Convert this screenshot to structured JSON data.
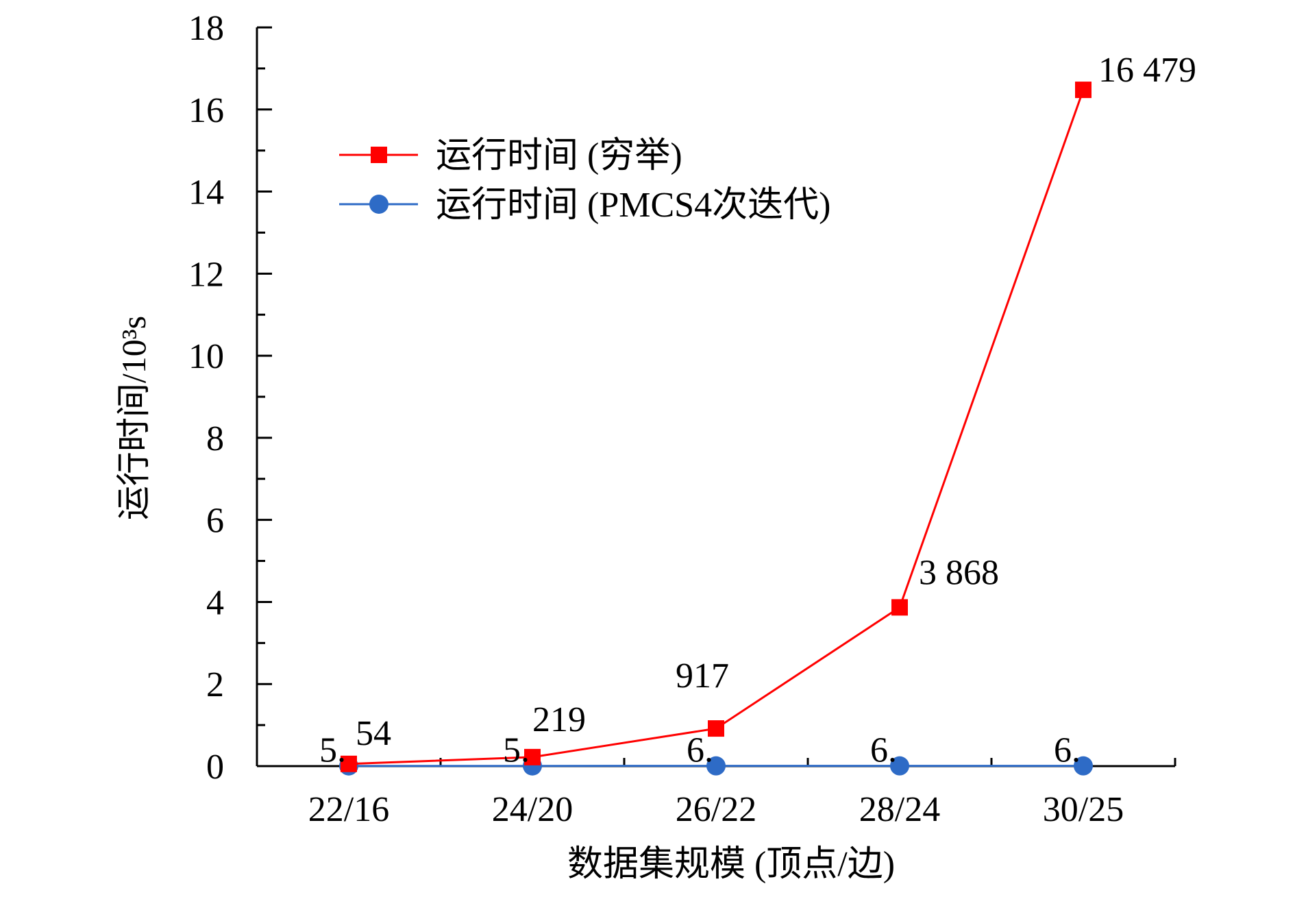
{
  "chart_data": {
    "type": "line",
    "title": "",
    "xlabel": "数据集规模 (顶点/边)",
    "ylabel": "运行时间/10³s",
    "categories": [
      "22/16",
      "24/20",
      "26/22",
      "28/24",
      "30/25"
    ],
    "ylim": [
      0,
      18
    ],
    "yticks": [
      0,
      2,
      4,
      6,
      8,
      10,
      12,
      14,
      16,
      18
    ],
    "grid": false,
    "legend_position": "top-left",
    "series": [
      {
        "name": "运行时间 (穷举)",
        "color": "#ff0000",
        "marker": "square",
        "values": [
          0.054,
          0.219,
          0.917,
          3.868,
          16.479
        ],
        "labels": [
          "54",
          "219",
          "917",
          "3 868",
          "16 479"
        ]
      },
      {
        "name": "运行时间 (PMCS4次迭代)",
        "color": "#2e6bc6",
        "marker": "circle",
        "values": [
          0.005,
          0.005,
          0.006,
          0.006,
          0.006
        ],
        "labels": [
          "5.",
          "5.",
          "6.",
          "6.",
          "6."
        ]
      }
    ]
  }
}
